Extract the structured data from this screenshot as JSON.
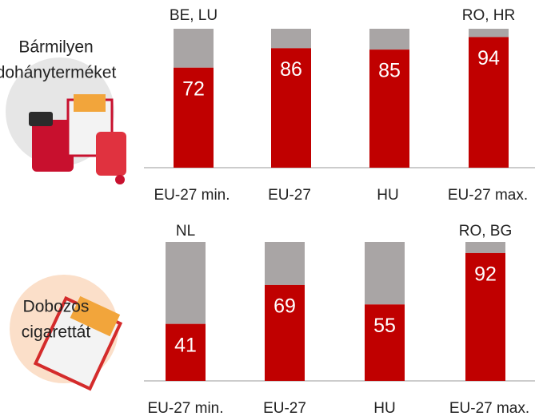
{
  "chart_data": [
    {
      "type": "bar",
      "label": [
        "Bármilyen",
        "dohányterméket"
      ],
      "categories": [
        "EU-27 min.",
        "EU-27",
        "HU",
        "EU-27 max."
      ],
      "annotations": [
        "BE, LU",
        null,
        null,
        "RO, HR"
      ],
      "values": [
        72,
        86,
        85,
        94
      ],
      "color": "#c00000",
      "rest_color": "#a9a5a5",
      "ylim": [
        0,
        100
      ]
    },
    {
      "type": "bar",
      "label": [
        "Dobozos",
        "cigarettát"
      ],
      "categories": [
        "EU-27 min.",
        "EU-27",
        "HU",
        "EU-27 max."
      ],
      "annotations": [
        "NL",
        null,
        null,
        "RO, BG"
      ],
      "values": [
        41,
        69,
        55,
        92
      ],
      "color": "#c00000",
      "rest_color": "#a9a5a5",
      "ylim": [
        0,
        100
      ]
    }
  ]
}
